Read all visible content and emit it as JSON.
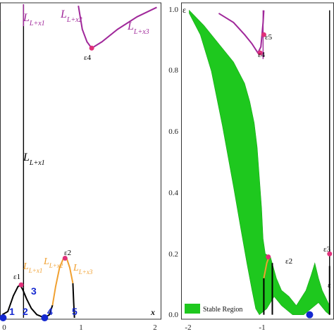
{
  "colors": {
    "purple": "#a0289a",
    "black": "#000000",
    "orange": "#f0a030",
    "magenta": "#e0307a",
    "blue": "#1428d0",
    "green": "#1ec81e",
    "frame": "#333333"
  },
  "chart_data": [
    {
      "type": "line",
      "panel": "left",
      "xlabel": "x",
      "xlim": [
        -0.05,
        2.0
      ],
      "ylim": [
        0.0,
        1.0
      ],
      "x_ticks": [
        0,
        1,
        2
      ],
      "x_tick_labels": [
        "0",
        "1",
        "2"
      ],
      "curves": [
        {
          "name": "black lower branch",
          "color": "#000000",
          "points": [
            [
              -0.02,
              0.01
            ],
            [
              0.05,
              0.02
            ],
            [
              0.12,
              0.07
            ],
            [
              0.18,
              0.1
            ],
            [
              0.21,
              0.103
            ],
            [
              0.24,
              0.09
            ],
            [
              0.29,
              0.06
            ],
            [
              0.35,
              0.03
            ],
            [
              0.42,
              0.01
            ],
            [
              0.52,
              0.0
            ],
            [
              0.58,
              0.01
            ],
            [
              0.62,
              0.04
            ]
          ]
        },
        {
          "name": "orange branch a",
          "color": "#f0a030",
          "points": [
            [
              0.62,
              0.04
            ],
            [
              0.66,
              0.1
            ],
            [
              0.71,
              0.16
            ],
            [
              0.76,
              0.19
            ]
          ]
        },
        {
          "name": "orange branch b",
          "color": "#f0a030",
          "points": [
            [
              0.8,
              0.19
            ],
            [
              0.84,
              0.16
            ],
            [
              0.88,
              0.11
            ]
          ]
        },
        {
          "name": "black right stub",
          "color": "#000000",
          "points": [
            [
              0.88,
              0.11
            ],
            [
              0.89,
              0.05
            ],
            [
              0.9,
              0.0
            ]
          ]
        },
        {
          "name": "purple upper curve",
          "color": "#a0289a",
          "points": [
            [
              0.95,
              0.995
            ],
            [
              1.0,
              0.92
            ],
            [
              1.06,
              0.88
            ],
            [
              1.12,
              0.86
            ],
            [
              1.25,
              0.88
            ],
            [
              1.45,
              0.92
            ],
            [
              1.7,
              0.96
            ],
            [
              1.95,
              0.99
            ]
          ]
        }
      ],
      "vertical_lines": [
        {
          "x": 0.25,
          "y_from": 0.0,
          "y_to": 1.0,
          "color": "#000000"
        },
        {
          "x": 0.25,
          "y_from": 0.93,
          "y_to": 1.0,
          "color": "#a0289a"
        }
      ],
      "points": [
        {
          "label": "ε1",
          "x": 0.22,
          "y": 0.105,
          "color": "#e0307a"
        },
        {
          "label": "ε2",
          "x": 0.78,
          "y": 0.19,
          "color": "#e0307a"
        },
        {
          "label": "ε4",
          "x": 1.12,
          "y": 0.86,
          "color": "#e0307a"
        },
        {
          "label": "1",
          "x": -0.01,
          "y": 0.0,
          "color": "#1428d0"
        },
        {
          "label": "4",
          "x": 0.52,
          "y": 0.0,
          "color": "#1428d0"
        }
      ],
      "annotations": [
        "L+x1",
        "L+x1",
        "L+x2",
        "L+x3",
        "L+x1",
        "L+x2",
        "L+x3",
        "ε1",
        "ε2",
        "ε4",
        "1",
        "2",
        "3",
        "4",
        "5"
      ]
    },
    {
      "type": "area",
      "panel": "right",
      "xlim": [
        -2.1,
        -0.05
      ],
      "ylim": [
        -0.01,
        1.02
      ],
      "x_ticks": [
        -2,
        -1
      ],
      "x_tick_labels": [
        "-2",
        "-1"
      ],
      "y_ticks": [
        0.0,
        0.2,
        0.4,
        0.6,
        0.8,
        1.0
      ],
      "y_tick_labels": [
        "0.0",
        "0.2",
        "0.4",
        "0.6",
        "0.8",
        "1.0"
      ],
      "legend": {
        "label": "Stable Region",
        "position": "bottom-left"
      },
      "stable_region": {
        "upper": [
          [
            -2.0,
            1.0
          ],
          [
            -1.8,
            0.95
          ],
          [
            -1.6,
            0.89
          ],
          [
            -1.4,
            0.83
          ],
          [
            -1.25,
            0.76
          ],
          [
            -1.18,
            0.7
          ],
          [
            -1.12,
            0.63
          ],
          [
            -1.08,
            0.55
          ],
          [
            -1.05,
            0.45
          ],
          [
            -1.02,
            0.35
          ],
          [
            -1.0,
            0.25
          ],
          [
            -0.97,
            0.2
          ],
          [
            -0.9,
            0.19
          ],
          [
            -0.82,
            0.12
          ],
          [
            -0.75,
            0.08
          ],
          [
            -0.65,
            0.06
          ],
          [
            -0.55,
            0.03
          ],
          [
            -0.42,
            0.08
          ],
          [
            -0.35,
            0.13
          ],
          [
            -0.3,
            0.17
          ],
          [
            -0.25,
            0.12
          ],
          [
            -0.2,
            0.08
          ],
          [
            -0.1,
            0.03
          ]
        ],
        "lower": [
          [
            -2.0,
            0.99
          ],
          [
            -1.85,
            0.92
          ],
          [
            -1.7,
            0.8
          ],
          [
            -1.55,
            0.62
          ],
          [
            -1.4,
            0.42
          ],
          [
            -1.3,
            0.28
          ],
          [
            -1.22,
            0.17
          ],
          [
            -1.15,
            0.08
          ],
          [
            -1.1,
            0.02
          ],
          [
            -1.05,
            0.0
          ],
          [
            -0.95,
            0.02
          ],
          [
            -0.85,
            0.06
          ],
          [
            -0.75,
            0.03
          ],
          [
            -0.6,
            0.0
          ],
          [
            -0.45,
            0.0
          ],
          [
            -0.35,
            0.02
          ],
          [
            -0.25,
            0.04
          ],
          [
            -0.15,
            0.01
          ],
          [
            -0.1,
            0.0
          ]
        ]
      },
      "curves": [
        {
          "name": "purple cusp curve",
          "color": "#a0289a",
          "points": [
            [
              -1.6,
              0.99
            ],
            [
              -1.4,
              0.96
            ],
            [
              -1.25,
              0.92
            ],
            [
              -1.15,
              0.89
            ],
            [
              -1.07,
              0.86
            ],
            [
              -1.03,
              0.88
            ],
            [
              -1.0,
              0.96
            ],
            [
              -0.99,
              1.0
            ]
          ]
        },
        {
          "name": "black drop left",
          "color": "#000000",
          "points": [
            [
              -0.99,
              0.12
            ],
            [
              -0.99,
              0.0
            ]
          ]
        },
        {
          "name": "orange rise",
          "color": "#f0a030",
          "points": [
            [
              -0.99,
              0.12
            ],
            [
              -0.95,
              0.17
            ],
            [
              -0.92,
              0.19
            ]
          ]
        },
        {
          "name": "black drop mid",
          "color": "#000000",
          "points": [
            [
              -0.875,
              0.17
            ],
            [
              -0.875,
              0.0
            ]
          ]
        },
        {
          "name": "black drop right",
          "color": "#000000",
          "points": [
            [
              -0.1,
              0.16
            ],
            [
              -0.1,
              0.0
            ]
          ]
        }
      ],
      "vertical_lines": [
        {
          "x": -0.1,
          "y_from": 0.0,
          "y_to": 1.0,
          "color": "#000000"
        },
        {
          "x": -1.0,
          "y_from": 0.84,
          "y_to": 1.0,
          "color": "#a0289a"
        }
      ],
      "points": [
        {
          "label": "ε5",
          "x": -0.99,
          "y": 0.92,
          "color": "#e0307a"
        },
        {
          "label": "ε4",
          "x": -1.04,
          "y": 0.86,
          "color": "#e0307a"
        },
        {
          "label": "ε2",
          "x": -0.93,
          "y": 0.19,
          "color": "#e0307a"
        },
        {
          "label": "ε3",
          "x": -0.1,
          "y": 0.2,
          "color": "#e0307a"
        },
        {
          "label": "",
          "x": -0.37,
          "y": 0.0,
          "color": "#1428d0"
        }
      ],
      "annotations": [
        "ε",
        "ε5",
        "ε4",
        "ε2",
        "ε3",
        "ε"
      ]
    }
  ]
}
